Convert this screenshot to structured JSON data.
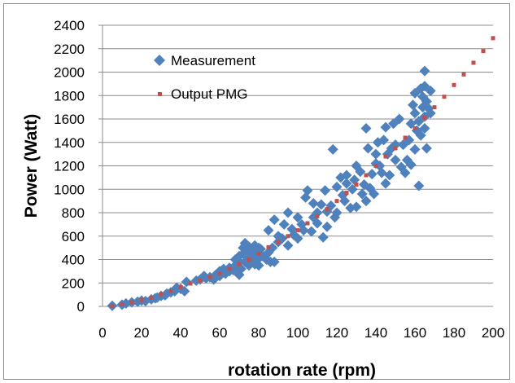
{
  "chart_data": {
    "type": "scatter",
    "xlabel": "rotation rate (rpm)",
    "ylabel": "Power (Watt)",
    "xlim": [
      0,
      200
    ],
    "ylim": [
      0,
      2400
    ],
    "x_ticks": [
      0,
      20,
      40,
      60,
      80,
      100,
      120,
      140,
      160,
      180,
      200
    ],
    "y_ticks": [
      0,
      200,
      400,
      600,
      800,
      1000,
      1200,
      1400,
      1600,
      1800,
      2000,
      2200,
      2400
    ],
    "grid": "horizontal",
    "legend_position": "top-left inside plot",
    "series": [
      {
        "name": "Measurement",
        "marker": "diamond",
        "color": "#4f81bd",
        "points": [
          [
            5,
            5
          ],
          [
            10,
            15
          ],
          [
            12,
            25
          ],
          [
            15,
            35
          ],
          [
            18,
            40
          ],
          [
            20,
            50
          ],
          [
            22,
            45
          ],
          [
            25,
            60
          ],
          [
            27,
            70
          ],
          [
            28,
            75
          ],
          [
            30,
            90
          ],
          [
            32,
            95
          ],
          [
            33,
            110
          ],
          [
            35,
            120
          ],
          [
            37,
            130
          ],
          [
            38,
            160
          ],
          [
            40,
            150
          ],
          [
            42,
            130
          ],
          [
            43,
            210
          ],
          [
            48,
            220
          ],
          [
            50,
            230
          ],
          [
            52,
            260
          ],
          [
            53,
            240
          ],
          [
            55,
            250
          ],
          [
            57,
            230
          ],
          [
            58,
            270
          ],
          [
            60,
            300
          ],
          [
            60,
            260
          ],
          [
            62,
            320
          ],
          [
            63,
            280
          ],
          [
            65,
            300
          ],
          [
            65,
            330
          ],
          [
            67,
            310
          ],
          [
            68,
            350
          ],
          [
            68,
            400
          ],
          [
            70,
            380
          ],
          [
            70,
            270
          ],
          [
            70,
            430
          ],
          [
            71,
            320
          ],
          [
            72,
            450
          ],
          [
            72,
            500
          ],
          [
            73,
            380
          ],
          [
            73,
            540
          ],
          [
            74,
            470
          ],
          [
            75,
            420
          ],
          [
            75,
            350
          ],
          [
            75,
            510
          ],
          [
            76,
            480
          ],
          [
            77,
            440
          ],
          [
            77,
            390
          ],
          [
            78,
            520
          ],
          [
            78,
            360
          ],
          [
            79,
            460
          ],
          [
            80,
            410
          ],
          [
            80,
            500
          ],
          [
            80,
            350
          ],
          [
            81,
            490
          ],
          [
            82,
            430
          ],
          [
            84,
            400
          ],
          [
            85,
            460
          ],
          [
            85,
            650
          ],
          [
            86,
            380
          ],
          [
            87,
            500
          ],
          [
            88,
            740
          ],
          [
            88,
            380
          ],
          [
            90,
            600
          ],
          [
            90,
            550
          ],
          [
            92,
            580
          ],
          [
            93,
            700
          ],
          [
            95,
            800
          ],
          [
            95,
            520
          ],
          [
            97,
            660
          ],
          [
            98,
            610
          ],
          [
            100,
            580
          ],
          [
            100,
            760
          ],
          [
            102,
            700
          ],
          [
            103,
            650
          ],
          [
            104,
            930
          ],
          [
            105,
            990
          ],
          [
            107,
            640
          ],
          [
            108,
            760
          ],
          [
            108,
            880
          ],
          [
            110,
            800
          ],
          [
            110,
            710
          ],
          [
            112,
            870
          ],
          [
            113,
            590
          ],
          [
            114,
            990
          ],
          [
            115,
            680
          ],
          [
            115,
            810
          ],
          [
            117,
            860
          ],
          [
            118,
            1340
          ],
          [
            119,
            760
          ],
          [
            120,
            1020
          ],
          [
            120,
            800
          ],
          [
            122,
            1100
          ],
          [
            123,
            950
          ],
          [
            124,
            900
          ],
          [
            125,
            1050
          ],
          [
            125,
            1120
          ],
          [
            127,
            840
          ],
          [
            128,
            1000
          ],
          [
            129,
            1080
          ],
          [
            130,
            850
          ],
          [
            130,
            1200
          ],
          [
            132,
            1150
          ],
          [
            133,
            960
          ],
          [
            134,
            1040
          ],
          [
            135,
            900
          ],
          [
            135,
            1520
          ],
          [
            136,
            1350
          ],
          [
            137,
            1010
          ],
          [
            138,
            1130
          ],
          [
            139,
            960
          ],
          [
            140,
            1220
          ],
          [
            140,
            1300
          ],
          [
            141,
            1400
          ],
          [
            142,
            1200
          ],
          [
            143,
            1140
          ],
          [
            144,
            1420
          ],
          [
            145,
            1530
          ],
          [
            145,
            1050
          ],
          [
            146,
            1300
          ],
          [
            147,
            1120
          ],
          [
            148,
            1350
          ],
          [
            149,
            1560
          ],
          [
            150,
            1380
          ],
          [
            150,
            1250
          ],
          [
            152,
            1600
          ],
          [
            153,
            1190
          ],
          [
            154,
            1380
          ],
          [
            155,
            1140
          ],
          [
            156,
            1250
          ],
          [
            157,
            1420
          ],
          [
            158,
            1560
          ],
          [
            158,
            1210
          ],
          [
            159,
            1720
          ],
          [
            160,
            1820
          ],
          [
            160,
            1650
          ],
          [
            160,
            1340
          ],
          [
            161,
            1500
          ],
          [
            162,
            1580
          ],
          [
            162,
            1030
          ],
          [
            163,
            1860
          ],
          [
            163,
            1460
          ],
          [
            164,
            1700
          ],
          [
            164,
            1790
          ],
          [
            165,
            2010
          ],
          [
            165,
            1620
          ],
          [
            165,
            1520
          ],
          [
            165,
            1880
          ],
          [
            166,
            1350
          ],
          [
            166,
            1750
          ],
          [
            167,
            1690
          ],
          [
            168,
            1650
          ],
          [
            168,
            1840
          ]
        ]
      },
      {
        "name": "Output PMG",
        "marker": "square",
        "color": "#c0504d",
        "points": [
          [
            5,
            5
          ],
          [
            10,
            18
          ],
          [
            15,
            35
          ],
          [
            20,
            55
          ],
          [
            25,
            75
          ],
          [
            30,
            105
          ],
          [
            35,
            130
          ],
          [
            40,
            165
          ],
          [
            45,
            195
          ],
          [
            50,
            220
          ],
          [
            55,
            250
          ],
          [
            60,
            280
          ],
          [
            65,
            320
          ],
          [
            70,
            360
          ],
          [
            75,
            400
          ],
          [
            80,
            450
          ],
          [
            85,
            505
          ],
          [
            90,
            550
          ],
          [
            95,
            600
          ],
          [
            100,
            650
          ],
          [
            105,
            710
          ],
          [
            110,
            770
          ],
          [
            115,
            830
          ],
          [
            120,
            900
          ],
          [
            125,
            970
          ],
          [
            130,
            1040
          ],
          [
            135,
            1120
          ],
          [
            140,
            1200
          ],
          [
            145,
            1280
          ],
          [
            150,
            1350
          ],
          [
            155,
            1440
          ],
          [
            160,
            1520
          ],
          [
            165,
            1610
          ],
          [
            170,
            1700
          ],
          [
            175,
            1790
          ],
          [
            180,
            1890
          ],
          [
            185,
            1980
          ],
          [
            190,
            2080
          ],
          [
            195,
            2180
          ],
          [
            200,
            2290
          ]
        ]
      }
    ]
  }
}
